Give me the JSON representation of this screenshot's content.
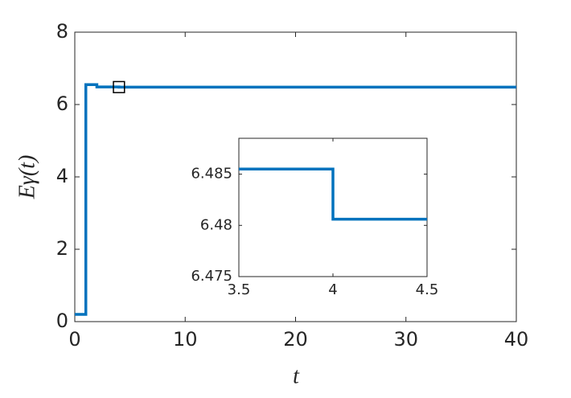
{
  "chart_data": [
    {
      "type": "line",
      "x_label": "t",
      "y_label": "Eγ(t)",
      "x": [
        0,
        1,
        1,
        2,
        2,
        4,
        4,
        40
      ],
      "series": [
        {
          "color": "#0072bd",
          "values": [
            0.2,
            0.2,
            6.55,
            6.55,
            6.4855,
            6.4855,
            6.4806,
            6.4806
          ]
        }
      ],
      "xlim": [
        0,
        40
      ],
      "xticks": [
        0,
        10,
        20,
        30,
        40
      ],
      "ylim": [
        0,
        8
      ],
      "yticks": [
        0,
        2,
        4,
        6,
        8
      ],
      "grid": false
    },
    {
      "type": "line",
      "x": [
        3.5,
        4,
        4,
        4.5
      ],
      "series": [
        {
          "color": "#0072bd",
          "values": [
            6.4855,
            6.4855,
            6.4806,
            6.4806
          ]
        }
      ],
      "xlim": [
        3.5,
        4.5
      ],
      "xticks": [
        3.5,
        4,
        4.5
      ],
      "ylim": [
        6.475,
        6.4885
      ],
      "yticks": [
        6.475,
        6.48,
        6.485
      ],
      "grid": false
    }
  ]
}
